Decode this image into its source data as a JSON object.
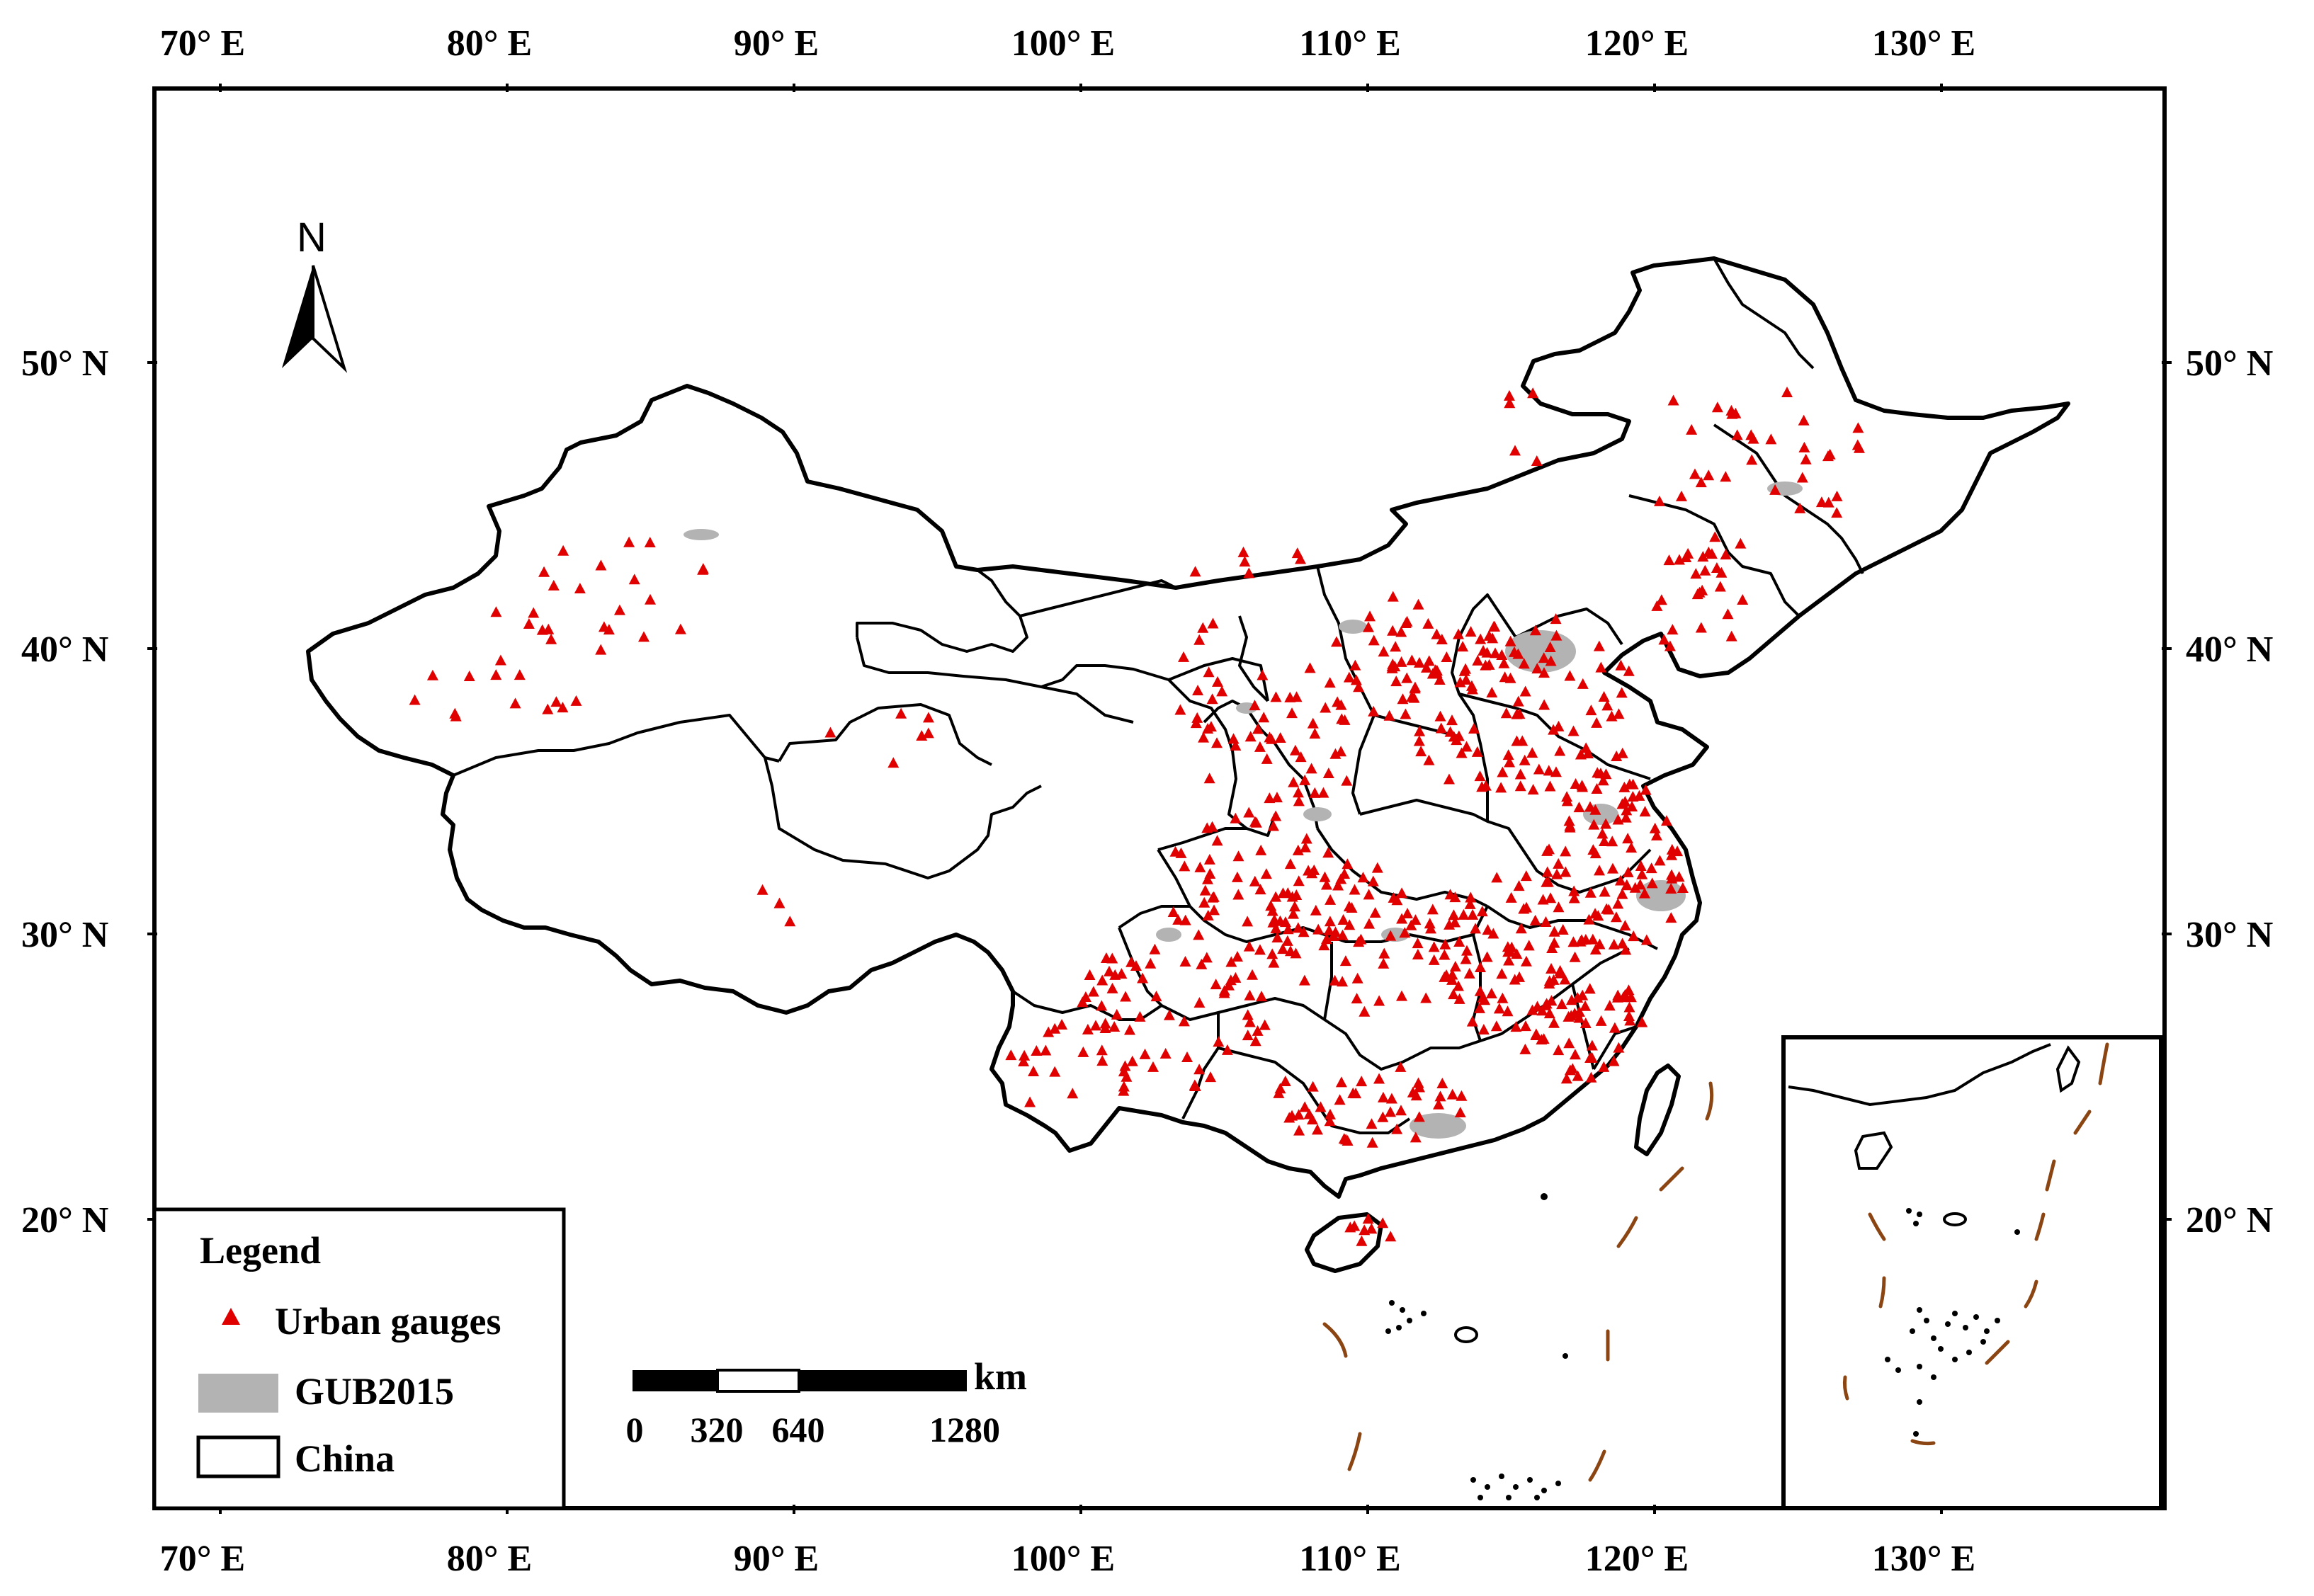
{
  "map": {
    "top_ticks": [
      "70° E",
      "80° E",
      "90° E",
      "100° E",
      "110° E",
      "120° E",
      "130° E"
    ],
    "bottom_ticks": [
      "70° E",
      "80° E",
      "90° E",
      "100° E",
      "110° E",
      "120° E",
      "130° E"
    ],
    "left_ticks": [
      "50° N",
      "40° N",
      "30° N",
      "20° N"
    ],
    "right_ticks": [
      "50° N",
      "40° N",
      "30° N",
      "20° N"
    ],
    "north_label": "N",
    "colors": {
      "gauge": "#e00000",
      "gub": "#b3b3b3",
      "border": "#000000",
      "dash": "#8B4513"
    }
  },
  "legend": {
    "title": "Legend",
    "items": [
      {
        "label": "Urban gauges",
        "symbol": "red-triangle"
      },
      {
        "label": "GUB2015",
        "symbol": "gray-rectangle"
      },
      {
        "label": "China",
        "symbol": "outline-rectangle"
      }
    ]
  },
  "scale_bar": {
    "unit": "km",
    "labels": [
      "0",
      "320",
      "640",
      "1280"
    ]
  }
}
